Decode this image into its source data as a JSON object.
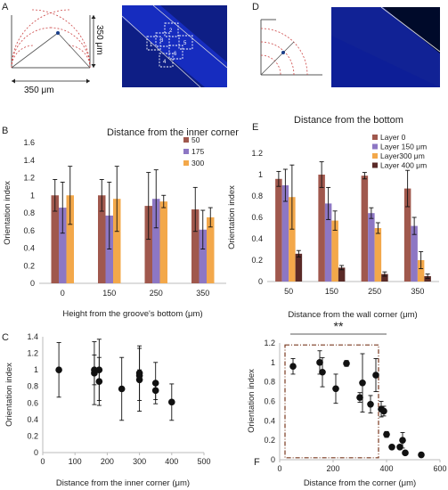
{
  "panels": {
    "A": {
      "letter": "A",
      "dim_width": "350 μm",
      "dim_height": "350 μm",
      "roi_labels": [
        "1",
        "2",
        "3",
        "4",
        "5",
        "6"
      ]
    },
    "D": {
      "letter": "D"
    }
  },
  "chart_data": [
    {
      "id": "B",
      "letter": "B",
      "type": "bar",
      "title": "Distance from the inner corner",
      "xlabel": "Height from the groove's bottom (μm)",
      "ylabel": "Orientation index",
      "ylim": [
        0,
        1.6
      ],
      "yticks": [
        "0",
        "0.2",
        "0.4",
        "0.6",
        "0.8",
        "1",
        "1.2",
        "1.4",
        "1.6"
      ],
      "categories": [
        "0",
        "150",
        "250",
        "350"
      ],
      "legend_position": "top-right",
      "series": [
        {
          "name": "50",
          "color": "#a0584d",
          "values": [
            1.0,
            1.0,
            0.88,
            0.84
          ],
          "errors": [
            0.18,
            0.18,
            0.38,
            0.25
          ]
        },
        {
          "name": "175",
          "color": "#8d77c4",
          "values": [
            0.86,
            0.77,
            0.96,
            0.61
          ],
          "errors": [
            0.29,
            0.38,
            0.33,
            0.22
          ]
        },
        {
          "name": "300",
          "color": "#f3a84a",
          "values": [
            1.0,
            0.96,
            0.93,
            0.75
          ],
          "errors": [
            0.33,
            0.37,
            0.07,
            0.11
          ]
        }
      ]
    },
    {
      "id": "E",
      "letter": "E",
      "type": "bar",
      "title": "Distance from the bottom",
      "xlabel": "Distance from the wall corner (μm)",
      "ylabel": "Orientation index",
      "ylim": [
        0,
        1.2
      ],
      "yticks": [
        "0",
        "0.2",
        "0.4",
        "0.6",
        "0.8",
        "1",
        "1.2"
      ],
      "categories": [
        "50",
        "150",
        "250",
        "350"
      ],
      "legend_position": "top-right",
      "series": [
        {
          "name": "Layer 0",
          "color": "#a0584d",
          "values": [
            0.96,
            1.0,
            0.99,
            0.87
          ],
          "errors": [
            0.07,
            0.12,
            0.03,
            0.17
          ]
        },
        {
          "name": "Layer 150 μm",
          "color": "#8d77c4",
          "values": [
            0.9,
            0.73,
            0.64,
            0.52
          ],
          "errors": [
            0.15,
            0.15,
            0.05,
            0.08
          ]
        },
        {
          "name": "Layer300 μm",
          "color": "#f3a84a",
          "values": [
            0.79,
            0.57,
            0.5,
            0.2
          ],
          "errors": [
            0.3,
            0.09,
            0.05,
            0.08
          ]
        },
        {
          "name": "Layer 400 μm",
          "color": "#5a2a27",
          "values": [
            0.26,
            0.13,
            0.07,
            0.05
          ],
          "errors": [
            0.03,
            0.02,
            0.02,
            0.02
          ]
        }
      ]
    },
    {
      "id": "C",
      "letter": "C",
      "type": "scatter",
      "xlabel": "Distance from the inner corner (μm)",
      "ylabel": "Orientation index",
      "xlim": [
        0,
        500
      ],
      "ylim": [
        0,
        1.4
      ],
      "xticks": [
        "0",
        "100",
        "200",
        "300",
        "400",
        "500"
      ],
      "yticks": [
        "0",
        "0.2",
        "0.4",
        "0.6",
        "0.8",
        "1",
        "1.2",
        "1.4"
      ],
      "points": [
        {
          "x": 50,
          "y": 1.0,
          "err": 0.33
        },
        {
          "x": 160,
          "y": 0.96,
          "err": 0.38
        },
        {
          "x": 160,
          "y": 1.0,
          "err": 0.18
        },
        {
          "x": 175,
          "y": 0.86,
          "err": 0.29
        },
        {
          "x": 175,
          "y": 1.0,
          "err": 0.37
        },
        {
          "x": 245,
          "y": 0.77,
          "err": 0.38
        },
        {
          "x": 300,
          "y": 0.88,
          "err": 0.38
        },
        {
          "x": 300,
          "y": 0.93,
          "err": 0.07
        },
        {
          "x": 300,
          "y": 0.96,
          "err": 0.33
        },
        {
          "x": 350,
          "y": 0.84,
          "err": 0.25
        },
        {
          "x": 350,
          "y": 0.75,
          "err": 0.11
        },
        {
          "x": 400,
          "y": 0.61,
          "err": 0.22
        }
      ]
    },
    {
      "id": "F",
      "letter": "F",
      "type": "scatter",
      "xlabel": "Distance from the corner (μm)",
      "ylabel": "Orientation index",
      "xlim": [
        0,
        600
      ],
      "ylim": [
        0,
        1.2
      ],
      "xticks": [
        "0",
        "200",
        "400",
        "600"
      ],
      "yticks": [
        "0",
        "0.2",
        "0.4",
        "0.6",
        "0.8",
        "1",
        "1.2"
      ],
      "significance": "**",
      "points": [
        {
          "x": 50,
          "y": 0.96,
          "err": 0.08
        },
        {
          "x": 150,
          "y": 1.0,
          "err": 0.12
        },
        {
          "x": 160,
          "y": 0.9,
          "err": 0.15
        },
        {
          "x": 210,
          "y": 0.73,
          "err": 0.15
        },
        {
          "x": 250,
          "y": 0.99,
          "err": 0.03
        },
        {
          "x": 300,
          "y": 0.64,
          "err": 0.05
        },
        {
          "x": 310,
          "y": 0.79,
          "err": 0.3
        },
        {
          "x": 340,
          "y": 0.57,
          "err": 0.09
        },
        {
          "x": 360,
          "y": 0.87,
          "err": 0.17
        },
        {
          "x": 380,
          "y": 0.52,
          "err": 0.08
        },
        {
          "x": 390,
          "y": 0.5,
          "err": 0.05
        },
        {
          "x": 400,
          "y": 0.26,
          "err": 0.03
        },
        {
          "x": 420,
          "y": 0.13,
          "err": 0.02
        },
        {
          "x": 450,
          "y": 0.13,
          "err": 0.02
        },
        {
          "x": 460,
          "y": 0.2,
          "err": 0.08
        },
        {
          "x": 470,
          "y": 0.07,
          "err": 0.02
        },
        {
          "x": 530,
          "y": 0.05,
          "err": 0.02
        }
      ]
    }
  ]
}
